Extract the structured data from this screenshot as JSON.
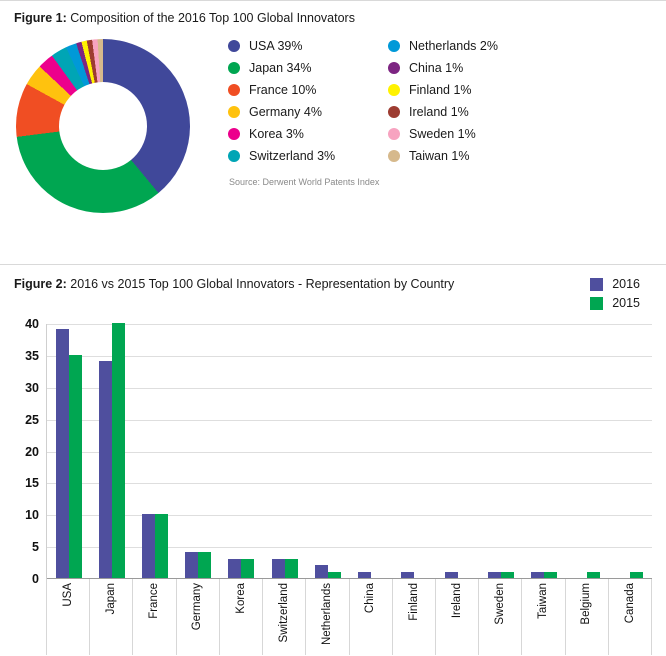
{
  "figure1": {
    "title_prefix": "Figure 1:",
    "title_rest": " Composition of the 2016 Top 100 Global Innovators",
    "source": "Source: Derwent World Patents Index"
  },
  "figure2": {
    "title_prefix": "Figure 2:",
    "title_rest": " 2016 vs 2015 Top 100 Global Innovators - Representation by Country"
  },
  "chart_data": [
    {
      "type": "pie",
      "variant": "donut",
      "title": "Composition of the 2016 Top 100 Global Innovators",
      "legend_position": "right",
      "source": "Source: Derwent World Patents Index",
      "slices": [
        {
          "label": "USA",
          "value": 39,
          "color": "#40489a"
        },
        {
          "label": "Japan",
          "value": 34,
          "color": "#00a651"
        },
        {
          "label": "France",
          "value": 10,
          "color": "#f04e23"
        },
        {
          "label": "Germany",
          "value": 4,
          "color": "#ffc20e"
        },
        {
          "label": "Korea",
          "value": 3,
          "color": "#ec008c"
        },
        {
          "label": "Switzerland",
          "value": 3,
          "color": "#00a5b5"
        },
        {
          "label": "Netherlands",
          "value": 2,
          "color": "#0099d8"
        },
        {
          "label": "China",
          "value": 1,
          "color": "#7d2582"
        },
        {
          "label": "Finland",
          "value": 1,
          "color": "#fff200"
        },
        {
          "label": "Ireland",
          "value": 1,
          "color": "#9d3c31"
        },
        {
          "label": "Sweden",
          "value": 1,
          "color": "#f7a3c0"
        },
        {
          "label": "Taiwan",
          "value": 1,
          "color": "#d6b98c"
        }
      ]
    },
    {
      "type": "bar",
      "title": "2016 vs 2015 Top 100 Global Innovators - Representation by Country",
      "categories": [
        "USA",
        "Japan",
        "France",
        "Germany",
        "Korea",
        "Switzerland",
        "Netherlands",
        "China",
        "Finland",
        "Ireland",
        "Sweden",
        "Taiwan",
        "Belgium",
        "Canada"
      ],
      "series": [
        {
          "name": "2016",
          "color": "#4f4f9e",
          "values": [
            39,
            34,
            10,
            4,
            3,
            3,
            2,
            1,
            1,
            1,
            1,
            1,
            0,
            0
          ]
        },
        {
          "name": "2015",
          "color": "#00a651",
          "values": [
            35,
            40,
            10,
            4,
            3,
            3,
            1,
            0,
            0,
            0,
            1,
            1,
            1,
            1
          ]
        }
      ],
      "ylim": [
        0,
        40
      ],
      "ytick_step": 5,
      "grid": true,
      "legend_position": "top-right"
    }
  ]
}
